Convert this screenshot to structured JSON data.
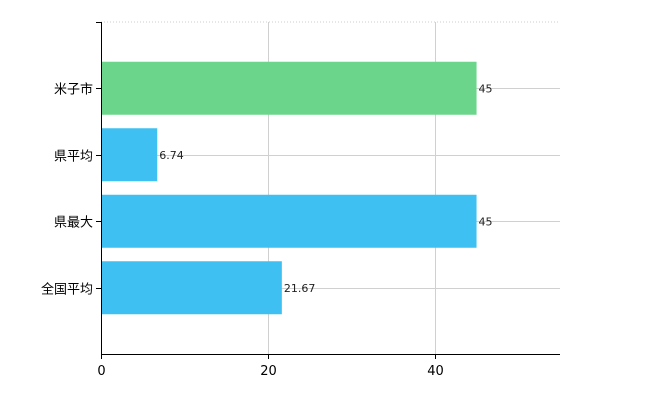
{
  "chart_data": {
    "type": "bar",
    "orientation": "horizontal",
    "categories": [
      "米子市",
      "県平均",
      "県最大",
      "全国平均"
    ],
    "values": [
      45,
      6.74,
      45,
      21.67
    ],
    "value_labels": [
      "45",
      "6.74",
      "45",
      "21.67"
    ],
    "bar_colors": [
      "#6bd58c",
      "#3ec1f2",
      "#3ec1f2",
      "#3ec1f2"
    ],
    "xlim": [
      0,
      55
    ],
    "x_ticks": [
      0,
      20,
      40
    ],
    "x_tick_labels": [
      "0",
      "20",
      "40"
    ],
    "grid": true,
    "title": "",
    "xlabel": "",
    "ylabel": ""
  }
}
